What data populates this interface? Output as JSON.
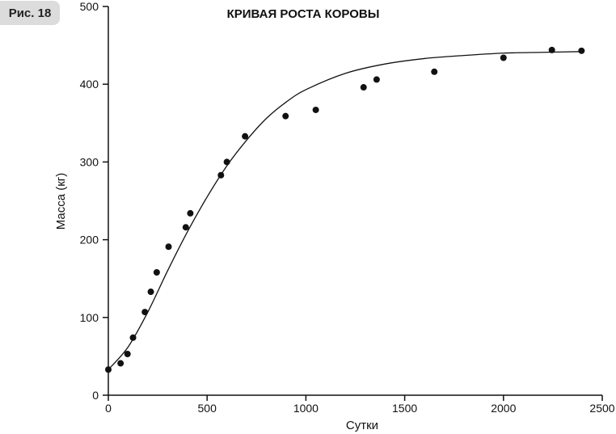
{
  "figure_label": "Рис. 18",
  "chart_data": {
    "type": "scatter",
    "title": "КРИВАЯ РОСТА КОРОВЫ",
    "xlabel": "Сутки",
    "ylabel": "Масса (кг)",
    "xlim": [
      0,
      2500
    ],
    "ylim": [
      0,
      500
    ],
    "x_ticks": [
      0,
      500,
      1000,
      1500,
      2000,
      2500
    ],
    "y_ticks": [
      0,
      100,
      200,
      300,
      400,
      500
    ],
    "grid": false,
    "legend": "none",
    "point_color": "#111111",
    "series": [
      {
        "type": "scatter",
        "points": [
          {
            "x": 0,
            "y": 33
          },
          {
            "x": 62,
            "y": 41
          },
          {
            "x": 97,
            "y": 53
          },
          {
            "x": 125,
            "y": 74
          },
          {
            "x": 185,
            "y": 107
          },
          {
            "x": 215,
            "y": 133
          },
          {
            "x": 245,
            "y": 158
          },
          {
            "x": 305,
            "y": 191
          },
          {
            "x": 392,
            "y": 216
          },
          {
            "x": 415,
            "y": 234
          },
          {
            "x": 570,
            "y": 283
          },
          {
            "x": 600,
            "y": 300
          },
          {
            "x": 692,
            "y": 333
          },
          {
            "x": 897,
            "y": 359
          },
          {
            "x": 1050,
            "y": 367
          },
          {
            "x": 1292,
            "y": 396
          },
          {
            "x": 1358,
            "y": 406
          },
          {
            "x": 1650,
            "y": 416
          },
          {
            "x": 2000,
            "y": 434
          },
          {
            "x": 2245,
            "y": 444
          },
          {
            "x": 2395,
            "y": 443
          }
        ]
      },
      {
        "type": "line",
        "points": [
          {
            "x": 0,
            "y": 33
          },
          {
            "x": 100,
            "y": 62
          },
          {
            "x": 200,
            "y": 107
          },
          {
            "x": 300,
            "y": 160
          },
          {
            "x": 400,
            "y": 210
          },
          {
            "x": 500,
            "y": 255
          },
          {
            "x": 600,
            "y": 295
          },
          {
            "x": 700,
            "y": 328
          },
          {
            "x": 800,
            "y": 356
          },
          {
            "x": 900,
            "y": 377
          },
          {
            "x": 1000,
            "y": 393
          },
          {
            "x": 1200,
            "y": 414
          },
          {
            "x": 1400,
            "y": 426
          },
          {
            "x": 1600,
            "y": 433
          },
          {
            "x": 1800,
            "y": 437
          },
          {
            "x": 2000,
            "y": 440
          },
          {
            "x": 2200,
            "y": 441
          },
          {
            "x": 2400,
            "y": 442
          }
        ]
      }
    ]
  }
}
